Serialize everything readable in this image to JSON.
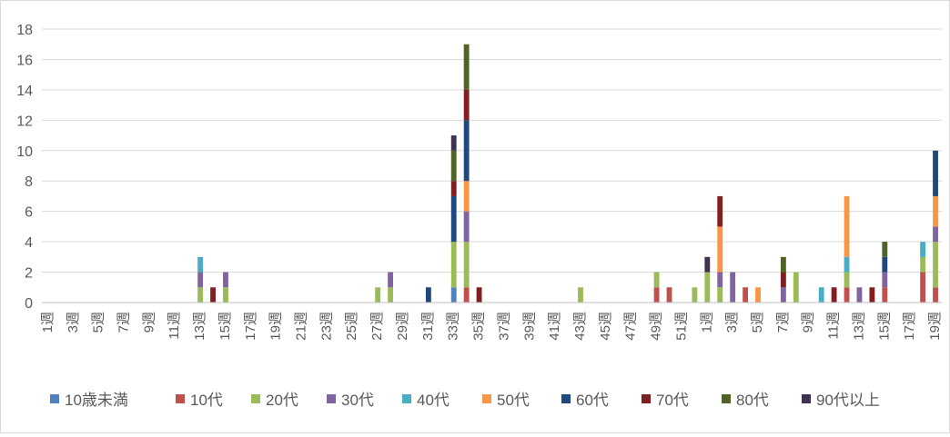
{
  "chart_data": {
    "type": "bar",
    "stacked": true,
    "grid": true,
    "legend_position": "bottom",
    "ylim": [
      0,
      18
    ],
    "yticks": [
      0,
      2,
      4,
      6,
      8,
      10,
      12,
      14,
      16,
      18
    ],
    "categories": [
      "1週",
      "2週",
      "3週",
      "4週",
      "5週",
      "6週",
      "7週",
      "8週",
      "9週",
      "10週",
      "11週",
      "12週",
      "13週",
      "14週",
      "15週",
      "16週",
      "17週",
      "18週",
      "19週",
      "20週",
      "21週",
      "22週",
      "23週",
      "24週",
      "25週",
      "26週",
      "27週",
      "28週",
      "29週",
      "30週",
      "31週",
      "32週",
      "33週",
      "34週",
      "35週",
      "36週",
      "37週",
      "38週",
      "39週",
      "40週",
      "41週",
      "42週",
      "43週",
      "44週",
      "45週",
      "46週",
      "47週",
      "48週",
      "49週",
      "50週",
      "51週",
      "52週",
      "1週",
      "2週",
      "3週",
      "4週",
      "5週",
      "6週",
      "7週",
      "8週",
      "9週",
      "10週",
      "11週",
      "12週",
      "13週",
      "14週",
      "15週",
      "16週",
      "17週",
      "18週",
      "19週"
    ],
    "tick_labels": [
      "1週",
      "3週",
      "5週",
      "7週",
      "9週",
      "11週",
      "13週",
      "15週",
      "17週",
      "19週",
      "21週",
      "23週",
      "25週",
      "27週",
      "29週",
      "31週",
      "33週",
      "35週",
      "37週",
      "39週",
      "41週",
      "43週",
      "45週",
      "47週",
      "49週",
      "51週",
      "1週",
      "3週",
      "5週",
      "7週",
      "9週",
      "11週",
      "13週",
      "15週",
      "17週",
      "19週"
    ],
    "series": [
      {
        "name": "10歳未満",
        "color": "#4f81bd",
        "values": [
          0,
          0,
          0,
          0,
          0,
          0,
          0,
          0,
          0,
          0,
          0,
          0,
          0,
          0,
          0,
          0,
          0,
          0,
          0,
          0,
          0,
          0,
          0,
          0,
          0,
          0,
          0,
          0,
          0,
          0,
          0,
          0,
          1,
          0,
          0,
          0,
          0,
          0,
          0,
          0,
          0,
          0,
          0,
          0,
          0,
          0,
          0,
          0,
          0,
          0,
          0,
          0,
          0,
          0,
          0,
          0,
          0,
          0,
          0,
          0,
          0,
          0,
          0,
          0,
          0,
          0,
          0,
          0,
          0,
          0,
          0
        ]
      },
      {
        "name": "10代",
        "color": "#c0504d",
        "values": [
          0,
          0,
          0,
          0,
          0,
          0,
          0,
          0,
          0,
          0,
          0,
          0,
          0,
          0,
          0,
          0,
          0,
          0,
          0,
          0,
          0,
          0,
          0,
          0,
          0,
          0,
          0,
          0,
          0,
          0,
          0,
          0,
          0,
          1,
          0,
          0,
          0,
          0,
          0,
          0,
          0,
          0,
          0,
          0,
          0,
          0,
          0,
          0,
          1,
          1,
          0,
          0,
          0,
          0,
          0,
          1,
          0,
          0,
          0,
          0,
          0,
          0,
          0,
          1,
          0,
          0,
          1,
          0,
          0,
          2,
          1
        ]
      },
      {
        "name": "20代",
        "color": "#9bbb59",
        "values": [
          0,
          0,
          0,
          0,
          0,
          0,
          0,
          0,
          0,
          0,
          0,
          0,
          1,
          0,
          1,
          0,
          0,
          0,
          0,
          0,
          0,
          0,
          0,
          0,
          0,
          0,
          1,
          1,
          0,
          0,
          0,
          0,
          3,
          3,
          0,
          0,
          0,
          0,
          0,
          0,
          0,
          0,
          1,
          0,
          0,
          0,
          0,
          0,
          1,
          0,
          0,
          1,
          2,
          1,
          0,
          0,
          0,
          0,
          0,
          2,
          0,
          0,
          0,
          1,
          0,
          0,
          0,
          0,
          0,
          1,
          3
        ]
      },
      {
        "name": "30代",
        "color": "#8064a2",
        "values": [
          0,
          0,
          0,
          0,
          0,
          0,
          0,
          0,
          0,
          0,
          0,
          0,
          1,
          0,
          1,
          0,
          0,
          0,
          0,
          0,
          0,
          0,
          0,
          0,
          0,
          0,
          0,
          1,
          0,
          0,
          0,
          0,
          0,
          2,
          0,
          0,
          0,
          0,
          0,
          0,
          0,
          0,
          0,
          0,
          0,
          0,
          0,
          0,
          0,
          0,
          0,
          0,
          0,
          1,
          2,
          0,
          0,
          0,
          1,
          0,
          0,
          0,
          0,
          0,
          1,
          0,
          1,
          0,
          0,
          0,
          1
        ]
      },
      {
        "name": "40代",
        "color": "#4bacc6",
        "values": [
          0,
          0,
          0,
          0,
          0,
          0,
          0,
          0,
          0,
          0,
          0,
          0,
          1,
          0,
          0,
          0,
          0,
          0,
          0,
          0,
          0,
          0,
          0,
          0,
          0,
          0,
          0,
          0,
          0,
          0,
          0,
          0,
          0,
          0,
          0,
          0,
          0,
          0,
          0,
          0,
          0,
          0,
          0,
          0,
          0,
          0,
          0,
          0,
          0,
          0,
          0,
          0,
          0,
          0,
          0,
          0,
          0,
          0,
          0,
          0,
          0,
          1,
          0,
          1,
          0,
          0,
          0,
          0,
          0,
          1,
          0
        ]
      },
      {
        "name": "50代",
        "color": "#f79646",
        "values": [
          0,
          0,
          0,
          0,
          0,
          0,
          0,
          0,
          0,
          0,
          0,
          0,
          0,
          0,
          0,
          0,
          0,
          0,
          0,
          0,
          0,
          0,
          0,
          0,
          0,
          0,
          0,
          0,
          0,
          0,
          0,
          0,
          0,
          2,
          0,
          0,
          0,
          0,
          0,
          0,
          0,
          0,
          0,
          0,
          0,
          0,
          0,
          0,
          0,
          0,
          0,
          0,
          0,
          3,
          0,
          0,
          1,
          0,
          0,
          0,
          0,
          0,
          0,
          4,
          0,
          0,
          0,
          0,
          0,
          0,
          2
        ]
      },
      {
        "name": "60代",
        "color": "#1f497d",
        "values": [
          0,
          0,
          0,
          0,
          0,
          0,
          0,
          0,
          0,
          0,
          0,
          0,
          0,
          0,
          0,
          0,
          0,
          0,
          0,
          0,
          0,
          0,
          0,
          0,
          0,
          0,
          0,
          0,
          0,
          0,
          1,
          0,
          3,
          4,
          0,
          0,
          0,
          0,
          0,
          0,
          0,
          0,
          0,
          0,
          0,
          0,
          0,
          0,
          0,
          0,
          0,
          0,
          0,
          0,
          0,
          0,
          0,
          0,
          0,
          0,
          0,
          0,
          0,
          0,
          0,
          0,
          1,
          0,
          0,
          0,
          3
        ]
      },
      {
        "name": "70代",
        "color": "#7f1f1f",
        "values": [
          0,
          0,
          0,
          0,
          0,
          0,
          0,
          0,
          0,
          0,
          0,
          0,
          0,
          1,
          0,
          0,
          0,
          0,
          0,
          0,
          0,
          0,
          0,
          0,
          0,
          0,
          0,
          0,
          0,
          0,
          0,
          0,
          1,
          2,
          1,
          0,
          0,
          0,
          0,
          0,
          0,
          0,
          0,
          0,
          0,
          0,
          0,
          0,
          0,
          0,
          0,
          0,
          0,
          2,
          0,
          0,
          0,
          0,
          1,
          0,
          0,
          0,
          1,
          0,
          0,
          1,
          0,
          0,
          0,
          0,
          0
        ]
      },
      {
        "name": "80代",
        "color": "#4f6228",
        "values": [
          0,
          0,
          0,
          0,
          0,
          0,
          0,
          0,
          0,
          0,
          0,
          0,
          0,
          0,
          0,
          0,
          0,
          0,
          0,
          0,
          0,
          0,
          0,
          0,
          0,
          0,
          0,
          0,
          0,
          0,
          0,
          0,
          2,
          3,
          0,
          0,
          0,
          0,
          0,
          0,
          0,
          0,
          0,
          0,
          0,
          0,
          0,
          0,
          0,
          0,
          0,
          0,
          0,
          0,
          0,
          0,
          0,
          0,
          1,
          0,
          0,
          0,
          0,
          0,
          0,
          0,
          1,
          0,
          0,
          0,
          0
        ]
      },
      {
        "name": "90代以上",
        "color": "#403151",
        "values": [
          0,
          0,
          0,
          0,
          0,
          0,
          0,
          0,
          0,
          0,
          0,
          0,
          0,
          0,
          0,
          0,
          0,
          0,
          0,
          0,
          0,
          0,
          0,
          0,
          0,
          0,
          0,
          0,
          0,
          0,
          0,
          0,
          1,
          0,
          0,
          0,
          0,
          0,
          0,
          0,
          0,
          0,
          0,
          0,
          0,
          0,
          0,
          0,
          0,
          0,
          0,
          0,
          1,
          0,
          0,
          0,
          0,
          0,
          0,
          0,
          0,
          0,
          0,
          0,
          0,
          0,
          0,
          0,
          0,
          0,
          0
        ]
      }
    ]
  }
}
